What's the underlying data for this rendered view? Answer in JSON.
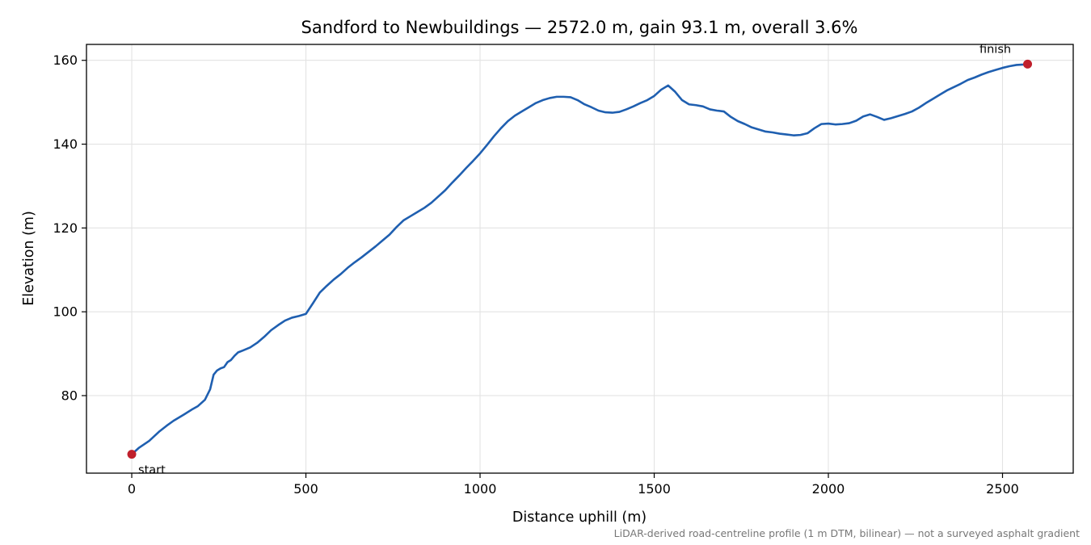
{
  "chart_data": {
    "type": "line",
    "title": "Sandford to Newbuildings — 2572.0 m, gain 93.1 m, overall 3.6%",
    "xlabel": "Distance uphill (m)",
    "ylabel": "Elevation (m)",
    "xlim": [
      -130,
      2703
    ],
    "ylim": [
      61.5,
      163.8
    ],
    "xticks": [
      0,
      500,
      1000,
      1500,
      2000,
      2500
    ],
    "yticks": [
      80,
      100,
      120,
      140,
      160
    ],
    "grid": true,
    "colors": {
      "line": "#1f5fb0",
      "marker": "#c0202c",
      "grid": "#e3e3e3",
      "footnote": "#777777"
    },
    "series": [
      {
        "x": [
          0,
          20,
          50,
          80,
          100,
          120,
          150,
          175,
          190,
          210,
          225,
          235,
          245,
          255,
          265,
          275,
          285,
          295,
          305,
          320,
          340,
          360,
          380,
          400,
          420,
          440,
          460,
          480,
          500,
          520,
          540,
          560,
          580,
          600,
          620,
          640,
          660,
          680,
          700,
          720,
          740,
          760,
          780,
          800,
          820,
          840,
          860,
          880,
          900,
          920,
          940,
          960,
          980,
          1000,
          1020,
          1040,
          1060,
          1080,
          1100,
          1120,
          1140,
          1160,
          1180,
          1200,
          1220,
          1240,
          1260,
          1280,
          1300,
          1320,
          1340,
          1360,
          1380,
          1400,
          1420,
          1440,
          1460,
          1480,
          1500,
          1520,
          1540,
          1560,
          1580,
          1600,
          1620,
          1640,
          1660,
          1680,
          1700,
          1720,
          1740,
          1760,
          1780,
          1800,
          1820,
          1840,
          1860,
          1880,
          1900,
          1920,
          1940,
          1960,
          1980,
          2000,
          2020,
          2040,
          2060,
          2080,
          2100,
          2120,
          2140,
          2160,
          2180,
          2200,
          2220,
          2240,
          2260,
          2280,
          2300,
          2320,
          2340,
          2360,
          2380,
          2400,
          2420,
          2440,
          2460,
          2480,
          2500,
          2520,
          2540,
          2560,
          2572
        ],
        "y": [
          66.0,
          67.5,
          69.2,
          71.5,
          72.8,
          74.0,
          75.5,
          76.8,
          77.5,
          79.0,
          81.5,
          85.0,
          86.0,
          86.5,
          86.8,
          88.0,
          88.5,
          89.5,
          90.3,
          90.8,
          91.5,
          92.6,
          94.0,
          95.6,
          96.8,
          97.9,
          98.6,
          99.0,
          99.5,
          102.0,
          104.6,
          106.2,
          107.7,
          109.0,
          110.5,
          111.8,
          113.0,
          114.3,
          115.6,
          117.0,
          118.4,
          120.2,
          121.8,
          122.8,
          123.8,
          124.8,
          126.0,
          127.5,
          129.0,
          130.8,
          132.5,
          134.3,
          136.0,
          137.8,
          139.8,
          141.9,
          143.8,
          145.5,
          146.8,
          147.8,
          148.8,
          149.8,
          150.5,
          151.0,
          151.3,
          151.3,
          151.2,
          150.5,
          149.5,
          148.8,
          148.0,
          147.6,
          147.5,
          147.7,
          148.3,
          149.0,
          149.8,
          150.5,
          151.5,
          153.0,
          154.0,
          152.5,
          150.5,
          149.5,
          149.3,
          149.0,
          148.3,
          148.0,
          147.8,
          146.5,
          145.5,
          144.8,
          144.0,
          143.5,
          143.0,
          142.8,
          142.5,
          142.3,
          142.1,
          142.2,
          142.6,
          143.8,
          144.8,
          144.9,
          144.7,
          144.8,
          145.0,
          145.6,
          146.6,
          147.1,
          146.5,
          145.8,
          146.2,
          146.7,
          147.2,
          147.8,
          148.7,
          149.8,
          150.8,
          151.8,
          152.8,
          153.6,
          154.4,
          155.3,
          155.9,
          156.6,
          157.2,
          157.7,
          158.2,
          158.6,
          158.9,
          159.0,
          159.1
        ]
      }
    ],
    "markers": [
      {
        "label": "start",
        "x": 0,
        "y": 66.0
      },
      {
        "label": "finish",
        "x": 2572,
        "y": 159.1
      }
    ],
    "footnote": "LiDAR-derived road-centreline profile (1 m DTM, bilinear) — not a surveyed asphalt gradient"
  }
}
